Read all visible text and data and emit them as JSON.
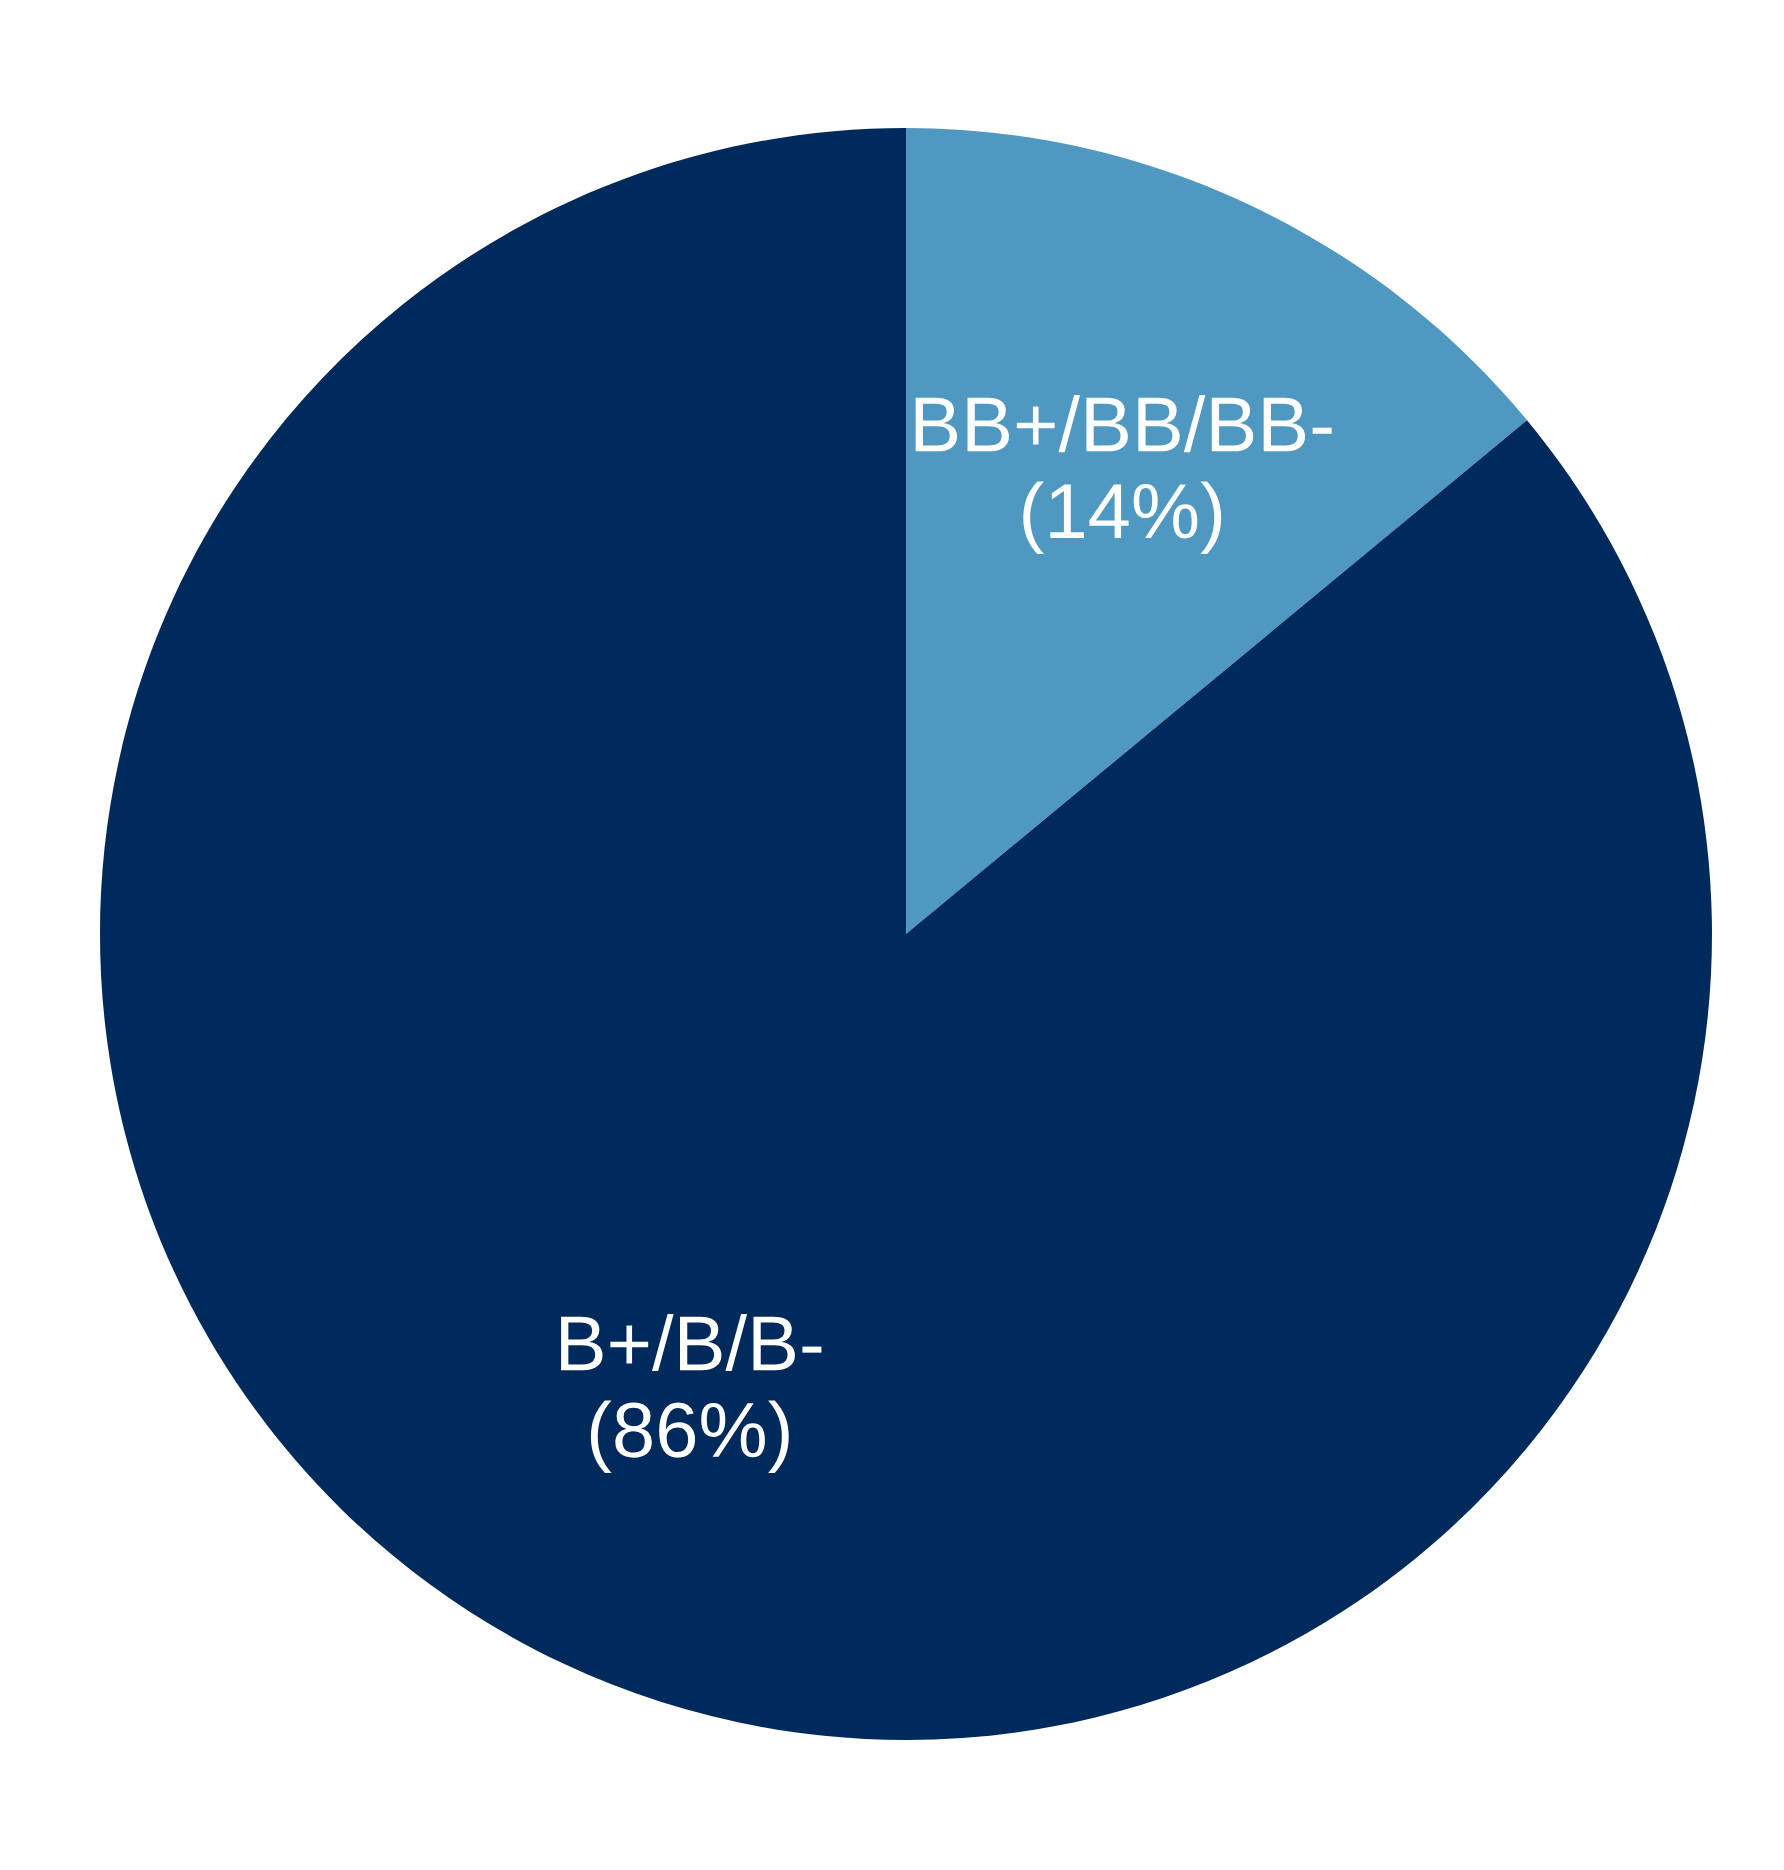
{
  "chart_data": {
    "type": "pie",
    "categories": [
      "BB+/BB/BB-",
      "B+/B/B-"
    ],
    "values": [
      14,
      86
    ],
    "value_labels": [
      "(14%)",
      "(86%)"
    ],
    "colors": [
      "#4f98c1",
      "#002a5c"
    ]
  }
}
